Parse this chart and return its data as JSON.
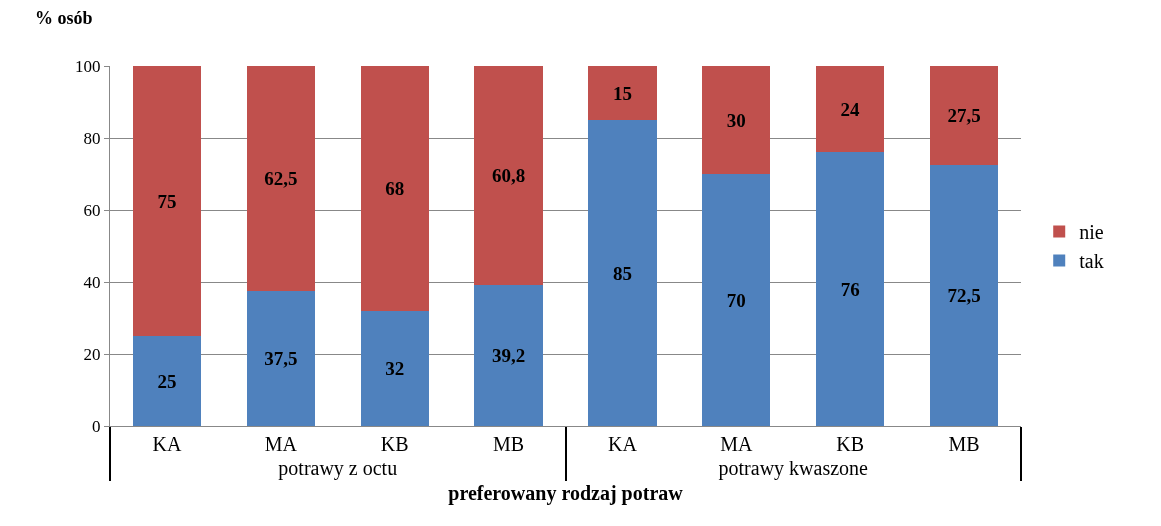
{
  "chart_data": {
    "type": "bar",
    "stacked": true,
    "categories": [
      "KA",
      "MA",
      "KB",
      "MB",
      "KA",
      "MA",
      "KB",
      "MB"
    ],
    "series": [
      {
        "name": "tak",
        "color": "#4f81bd",
        "values": [
          25,
          37.5,
          32,
          39.2,
          85,
          70,
          76,
          72.5
        ],
        "value_labels": [
          "25",
          "37,5",
          "32",
          "39,2",
          "85",
          "70",
          "76",
          "72,5"
        ]
      },
      {
        "name": "nie",
        "color": "#c0504d",
        "values": [
          75,
          62.5,
          68,
          60.8,
          15,
          30,
          24,
          27.5
        ],
        "value_labels": [
          "75",
          "62,5",
          "68",
          "60,8",
          "15",
          "30",
          "24",
          "27,5"
        ]
      }
    ],
    "ylim": [
      0,
      100
    ],
    "yticks": [
      0,
      20,
      40,
      60,
      80,
      100
    ],
    "grid": "y",
    "legend": "right",
    "ylabel": "% osób",
    "xlabel": "preferowany rodzaj potraw",
    "annotations": [
      "potrawy z octu",
      "potrawy kwaszone"
    ]
  }
}
